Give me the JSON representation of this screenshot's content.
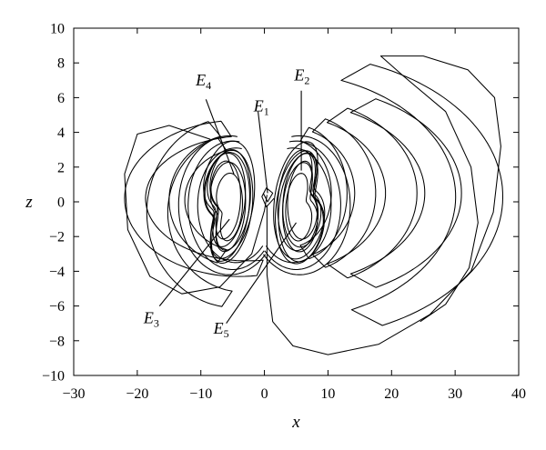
{
  "chart_data": {
    "type": "line",
    "title": "",
    "xlabel": "x",
    "ylabel": "z",
    "xlim": [
      -30,
      40
    ],
    "ylim": [
      -10,
      10
    ],
    "xticks": [
      -30,
      -20,
      -10,
      0,
      10,
      20,
      30,
      40
    ],
    "yticks": [
      -10,
      -8,
      -6,
      -4,
      -2,
      0,
      2,
      4,
      6,
      8,
      10
    ],
    "xtick_labels": [
      "−30",
      "−20",
      "−10",
      "0",
      "10",
      "20",
      "30",
      "40"
    ],
    "ytick_labels": [
      "−10",
      "−8",
      "−6",
      "−4",
      "−2",
      "0",
      "2",
      "4",
      "6",
      "8",
      "10"
    ],
    "grid": false,
    "series": [
      {
        "values": "phase-space trajectory (x, z) spiraling around equilibria E3/E4 near x≈−6 and E2/E5 near x≈+6, with outer excursions reaching x≈−22 to 37 and z≈−8.8 to 8.4"
      }
    ],
    "annotations": [
      {
        "base": "E",
        "sub": "1",
        "point": [
          0.5,
          0.5
        ]
      },
      {
        "base": "E",
        "sub": "2",
        "point": [
          5.8,
          1.8
        ]
      },
      {
        "base": "E",
        "sub": "3",
        "point": [
          -5.5,
          -1.0
        ]
      },
      {
        "base": "E",
        "sub": "4",
        "point": [
          -4.8,
          1.6
        ]
      },
      {
        "base": "E",
        "sub": "5",
        "point": [
          5.0,
          -1.2
        ]
      }
    ]
  }
}
